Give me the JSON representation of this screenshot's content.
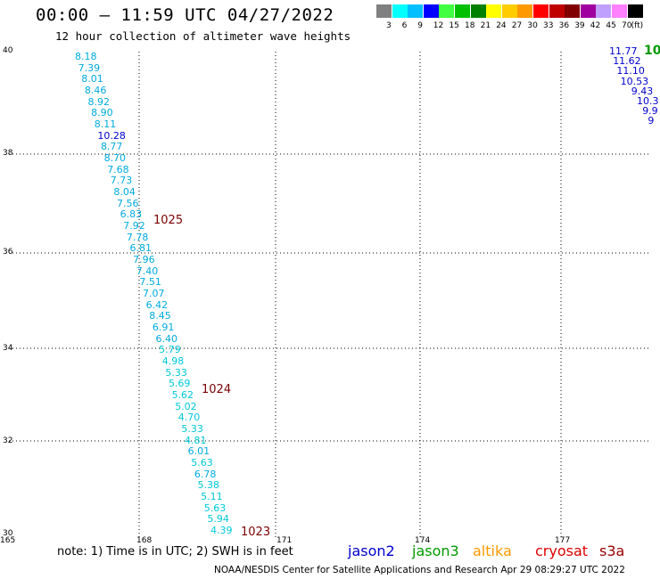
{
  "header": {
    "title": "00:00 – 11:59 UTC 04/27/2022",
    "subtitle": "12 hour collection of altimeter wave heights"
  },
  "colorbar": {
    "colors": [
      "#808080",
      "#00ffff",
      "#00bfff",
      "#0000ff",
      "#40ff40",
      "#00c000",
      "#008000",
      "#ffff00",
      "#ffcc00",
      "#ff9900",
      "#ff0000",
      "#c00000",
      "#800000",
      "#a000a0",
      "#c0a0ff",
      "#ff80ff",
      "#000000"
    ],
    "labels": [
      "3",
      "6",
      "9",
      "12",
      "15",
      "18",
      "21",
      "24",
      "27",
      "30",
      "33",
      "36",
      "39",
      "42",
      "45",
      "70",
      "(ft)"
    ]
  },
  "axes": {
    "y_labels": [
      "40",
      "38",
      "36",
      "34",
      "32",
      "30"
    ],
    "x_labels": [
      "165",
      "168",
      "171",
      "174",
      "177"
    ]
  },
  "track_cyan": {
    "values": [
      "8.18",
      "7.39",
      "8.01",
      "8.46",
      "8.92",
      "8.90",
      "8.11",
      "10.28",
      "8.77",
      "8.70",
      "7.68",
      "7.73",
      "8.04",
      "7.56",
      "6.83",
      "7.92",
      "7.78",
      "6.81",
      "7.96",
      "7.40",
      "7.51",
      "7.07",
      "6.42",
      "8.45",
      "6.91",
      "6.40",
      "5.79",
      "4.98",
      "5.33",
      "5.69",
      "5.62",
      "5.02",
      "4.70",
      "5.33",
      "4.81",
      "6.01",
      "5.63",
      "6.78",
      "5.38",
      "5.11",
      "5.63",
      "5.94",
      "4.39"
    ]
  },
  "track_right": {
    "values": [
      "11.77",
      "11.62",
      "11.10",
      "10.53",
      "9.43",
      "10.3",
      "9.9",
      "9"
    ]
  },
  "edge_label": "10",
  "pressure": [
    "1025",
    "1024",
    "1023"
  ],
  "note": "note:  1) Time is in UTC; 2) SWH is in feet",
  "satellites": [
    {
      "name": "jason2",
      "color": "#0000cc"
    },
    {
      "name": "jason3",
      "color": "#009900"
    },
    {
      "name": "altika",
      "color": "#ff9900"
    },
    {
      "name": "cryosat",
      "color": "#dd0000"
    },
    {
      "name": "s3a",
      "color": "#990000"
    }
  ],
  "credit": "NOAA/NESDIS Center for Satellite Applications and Research    Apr 29 08:29:27 UTC 2022"
}
